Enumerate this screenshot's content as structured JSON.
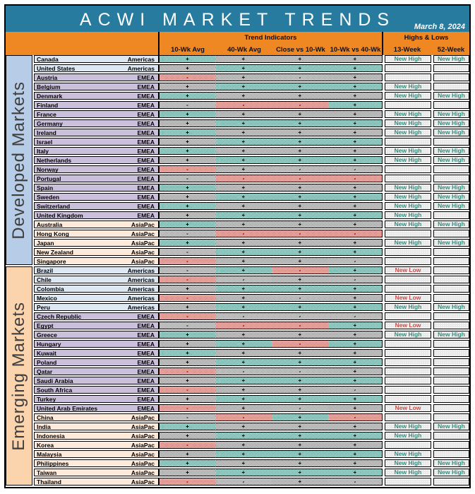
{
  "colors": {
    "title_bar": "#267B9E",
    "header_bar": "#EF8722",
    "positive_cell": "#47897B",
    "negative_cell": "#C65A54",
    "new_high_text": "#2E8F7F",
    "new_low_text": "#C0504D",
    "developed_sidebar": "#B7CCE6",
    "emerging_sidebar": "#FBD3AD",
    "americas_row": "#DDE8F3",
    "emea_row": "#CBC0DC",
    "asiapac_row": "#FDEADB"
  },
  "chart_data": {
    "type": "table",
    "title": "ACWI MARKET TRENDS",
    "date": "March 8, 2024",
    "header": {
      "trend_group": "Trend Indicators",
      "hl_group": "Highs & Lows",
      "trend_columns": [
        "10-Wk Avg",
        "40-Wk Avg",
        "Close vs 10-Wk",
        "10-Wk vs 40-Wk"
      ],
      "hl_columns": [
        "13-Week",
        "52-Week"
      ]
    },
    "sections": [
      {
        "label": "Developed Markets",
        "rows": [
          {
            "country": "Canada",
            "region": "Americas",
            "trend": [
              "+",
              "+",
              "+",
              "+"
            ],
            "wk13": "New High",
            "wk52": "New High"
          },
          {
            "country": "United States",
            "region": "Americas",
            "trend": [
              "+",
              "+",
              "+",
              "+"
            ],
            "wk13": "",
            "wk52": ""
          },
          {
            "country": "Austria",
            "region": "EMEA",
            "trend": [
              "-",
              "+",
              "-",
              "+"
            ],
            "wk13": "",
            "wk52": ""
          },
          {
            "country": "Belgium",
            "region": "EMEA",
            "trend": [
              "+",
              "+",
              "+",
              "+"
            ],
            "wk13": "New High",
            "wk52": ""
          },
          {
            "country": "Denmark",
            "region": "EMEA",
            "trend": [
              "+",
              "+",
              "+",
              "+"
            ],
            "wk13": "New High",
            "wk52": "New High"
          },
          {
            "country": "Finland",
            "region": "EMEA",
            "trend": [
              "-",
              "-",
              "-",
              "+"
            ],
            "wk13": "",
            "wk52": ""
          },
          {
            "country": "France",
            "region": "EMEA",
            "trend": [
              "+",
              "+",
              "+",
              "+"
            ],
            "wk13": "New High",
            "wk52": "New High"
          },
          {
            "country": "Germany",
            "region": "EMEA",
            "trend": [
              "+",
              "+",
              "+",
              "+"
            ],
            "wk13": "New High",
            "wk52": "New High"
          },
          {
            "country": "Ireland",
            "region": "EMEA",
            "trend": [
              "+",
              "+",
              "+",
              "+"
            ],
            "wk13": "New High",
            "wk52": "New High"
          },
          {
            "country": "Israel",
            "region": "EMEA",
            "trend": [
              "+",
              "+",
              "+",
              "+"
            ],
            "wk13": "",
            "wk52": ""
          },
          {
            "country": "Italy",
            "region": "EMEA",
            "trend": [
              "+",
              "+",
              "+",
              "+"
            ],
            "wk13": "New High",
            "wk52": "New High"
          },
          {
            "country": "Netherlands",
            "region": "EMEA",
            "trend": [
              "+",
              "+",
              "+",
              "+"
            ],
            "wk13": "New High",
            "wk52": "New High"
          },
          {
            "country": "Norway",
            "region": "EMEA",
            "trend": [
              "-",
              "+",
              "-",
              "-"
            ],
            "wk13": "",
            "wk52": ""
          },
          {
            "country": "Portugal",
            "region": "EMEA",
            "trend": [
              "-",
              "-",
              "-",
              "-"
            ],
            "wk13": "",
            "wk52": ""
          },
          {
            "country": "Spain",
            "region": "EMEA",
            "trend": [
              "+",
              "+",
              "+",
              "+"
            ],
            "wk13": "New High",
            "wk52": "New High"
          },
          {
            "country": "Sweden",
            "region": "EMEA",
            "trend": [
              "+",
              "+",
              "+",
              "+"
            ],
            "wk13": "New High",
            "wk52": "New High"
          },
          {
            "country": "Switzerland",
            "region": "EMEA",
            "trend": [
              "+",
              "+",
              "+",
              "+"
            ],
            "wk13": "New High",
            "wk52": "New High"
          },
          {
            "country": "United Kingdom",
            "region": "EMEA",
            "trend": [
              "+",
              "+",
              "+",
              "+"
            ],
            "wk13": "New High",
            "wk52": ""
          },
          {
            "country": "Australia",
            "region": "AsiaPac",
            "trend": [
              "+",
              "+",
              "+",
              "+"
            ],
            "wk13": "New High",
            "wk52": "New High"
          },
          {
            "country": "Hong Kong",
            "region": "AsiaPac",
            "trend": [
              "-",
              "-",
              "-",
              "-"
            ],
            "wk13": "",
            "wk52": ""
          },
          {
            "country": "Japan",
            "region": "AsiaPac",
            "trend": [
              "+",
              "+",
              "+",
              "+"
            ],
            "wk13": "New High",
            "wk52": "New High"
          },
          {
            "country": "New Zealand",
            "region": "AsiaPac",
            "trend": [
              "-",
              "+",
              "+",
              "+"
            ],
            "wk13": "",
            "wk52": ""
          },
          {
            "country": "Singapore",
            "region": "AsiaPac",
            "trend": [
              "-",
              "+",
              "+",
              "-"
            ],
            "wk13": "",
            "wk52": ""
          }
        ]
      },
      {
        "label": "Emerging Markets",
        "rows": [
          {
            "country": "Brazil",
            "region": "Americas",
            "trend": [
              "-",
              "+",
              "-",
              "+"
            ],
            "wk13": "New Low",
            "wk52": ""
          },
          {
            "country": "Chile",
            "region": "Americas",
            "trend": [
              "-",
              "-",
              "+",
              "-"
            ],
            "wk13": "",
            "wk52": ""
          },
          {
            "country": "Colombia",
            "region": "Americas",
            "trend": [
              "+",
              "+",
              "+",
              "+"
            ],
            "wk13": "",
            "wk52": ""
          },
          {
            "country": "Mexico",
            "region": "Americas",
            "trend": [
              "-",
              "+",
              "-",
              "+"
            ],
            "wk13": "New Low",
            "wk52": ""
          },
          {
            "country": "Peru",
            "region": "Americas",
            "trend": [
              "+",
              "+",
              "+",
              "+"
            ],
            "wk13": "New High",
            "wk52": "New High"
          },
          {
            "country": "Czech Republic",
            "region": "EMEA",
            "trend": [
              "-",
              "-",
              "-",
              "-"
            ],
            "wk13": "",
            "wk52": ""
          },
          {
            "country": "Egypt",
            "region": "EMEA",
            "trend": [
              "-",
              "-",
              "-",
              "+"
            ],
            "wk13": "New Low",
            "wk52": ""
          },
          {
            "country": "Greece",
            "region": "EMEA",
            "trend": [
              "+",
              "+",
              "+",
              "+"
            ],
            "wk13": "New High",
            "wk52": "New High"
          },
          {
            "country": "Hungary",
            "region": "EMEA",
            "trend": [
              "+",
              "+",
              "-",
              "+"
            ],
            "wk13": "",
            "wk52": ""
          },
          {
            "country": "Kuwait",
            "region": "EMEA",
            "trend": [
              "+",
              "+",
              "+",
              "+"
            ],
            "wk13": "",
            "wk52": ""
          },
          {
            "country": "Poland",
            "region": "EMEA",
            "trend": [
              "+",
              "+",
              "+",
              "+"
            ],
            "wk13": "",
            "wk52": ""
          },
          {
            "country": "Qatar",
            "region": "EMEA",
            "trend": [
              "-",
              "-",
              "-",
              "+"
            ],
            "wk13": "",
            "wk52": ""
          },
          {
            "country": "Saudi Arabia",
            "region": "EMEA",
            "trend": [
              "+",
              "+",
              "+",
              "+"
            ],
            "wk13": "",
            "wk52": ""
          },
          {
            "country": "South Africa",
            "region": "EMEA",
            "trend": [
              "-",
              "+",
              "+",
              "-"
            ],
            "wk13": "",
            "wk52": ""
          },
          {
            "country": "Turkey",
            "region": "EMEA",
            "trend": [
              "+",
              "+",
              "+",
              "+"
            ],
            "wk13": "",
            "wk52": ""
          },
          {
            "country": "United Arab Emirates",
            "region": "EMEA",
            "trend": [
              "-",
              "+",
              "-",
              "+"
            ],
            "wk13": "New Low",
            "wk52": ""
          },
          {
            "country": "China",
            "region": "AsiaPac",
            "trend": [
              "-",
              "-",
              "+",
              "-"
            ],
            "wk13": "",
            "wk52": ""
          },
          {
            "country": "India",
            "region": "AsiaPac",
            "trend": [
              "+",
              "+",
              "+",
              "+"
            ],
            "wk13": "New High",
            "wk52": "New High"
          },
          {
            "country": "Indonesia",
            "region": "AsiaPac",
            "trend": [
              "+",
              "+",
              "+",
              "+"
            ],
            "wk13": "New High",
            "wk52": ""
          },
          {
            "country": "Korea",
            "region": "AsiaPac",
            "trend": [
              "-",
              "+",
              "+",
              "+"
            ],
            "wk13": "",
            "wk52": ""
          },
          {
            "country": "Malaysia",
            "region": "AsiaPac",
            "trend": [
              "+",
              "+",
              "+",
              "+"
            ],
            "wk13": "New High",
            "wk52": ""
          },
          {
            "country": "Philippines",
            "region": "AsiaPac",
            "trend": [
              "+",
              "+",
              "+",
              "+"
            ],
            "wk13": "New High",
            "wk52": "New High"
          },
          {
            "country": "Taiwan",
            "region": "AsiaPac",
            "trend": [
              "+",
              "+",
              "+",
              "+"
            ],
            "wk13": "New High",
            "wk52": "New High"
          },
          {
            "country": "Thailand",
            "region": "AsiaPac",
            "trend": [
              "-",
              "-",
              "+",
              "-"
            ],
            "wk13": "",
            "wk52": ""
          }
        ]
      }
    ]
  }
}
